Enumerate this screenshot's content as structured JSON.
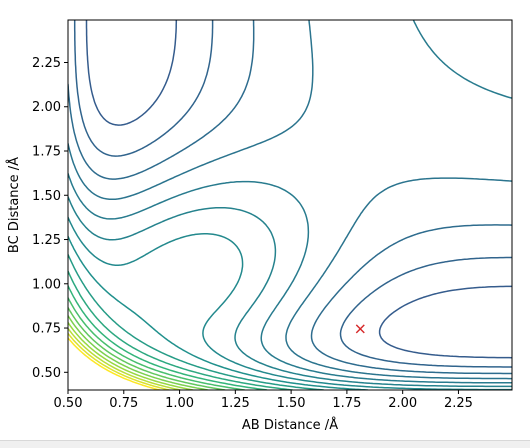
{
  "chart_data": {
    "type": "contour",
    "title": "",
    "xlabel": "AB Distance /Å",
    "ylabel": "BC Distance /Å",
    "xlim": [
      0.5,
      2.49
    ],
    "ylim": [
      0.4,
      2.49
    ],
    "x_ticks": [
      "0.50",
      "0.75",
      "1.00",
      "1.25",
      "1.50",
      "1.75",
      "2.00",
      "2.25"
    ],
    "y_ticks": [
      "0.50",
      "0.75",
      "1.00",
      "1.25",
      "1.50",
      "1.75",
      "2.00",
      "2.25"
    ],
    "colormap": "viridis",
    "levels": 28,
    "level_min": -104,
    "level_step": 7,
    "surface": {
      "form": "LEPS-like (Morse sum with coupling)",
      "well_depth": 40,
      "alpha": 2.2,
      "r_eq": 0.74,
      "inner_alpha": 3.0,
      "inner_scale": 15,
      "inner_r": 0.92,
      "coupling_scale": 70
    },
    "marker": {
      "x": 1.81,
      "y": 0.745,
      "symbol": "x",
      "color": "#d62728"
    },
    "grid": false,
    "legend": "none"
  }
}
